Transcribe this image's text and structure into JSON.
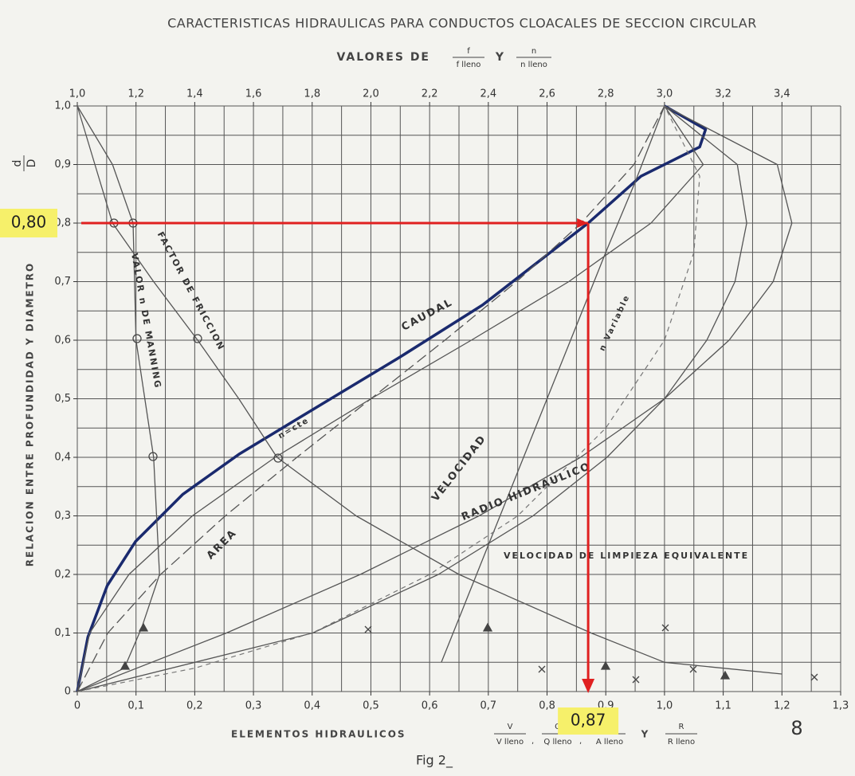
{
  "chart_data": {
    "type": "line",
    "title": "CARACTERISTICAS HIDRAULICAS PARA CONDUCTOS CLOACALES DE SECCION CIRCULAR",
    "subtitle": {
      "text": "VALORES DE",
      "join": "Y",
      "ratios": [
        {
          "num": "f",
          "den": "f lleno"
        },
        {
          "num": "n",
          "den": "n lleno"
        }
      ]
    },
    "y_label": "RELACION ENTRE PROFUNDIDAD Y DIAMETRO",
    "y_ratio": {
      "num": "d",
      "den": "D"
    },
    "x_label": {
      "text": "ELEMENTOS HIDRAULICOS",
      "separator": ",",
      "join": "Y",
      "ratios": [
        {
          "num": "V",
          "den": "V lleno"
        },
        {
          "num": "Q",
          "den": "Q lleno"
        },
        {
          "num": "A",
          "den": "A lleno"
        },
        {
          "num": "R",
          "den": "R lleno"
        }
      ]
    },
    "caption": "Fig 2_",
    "page_number": "8",
    "xlim": [
      0,
      1.3
    ],
    "xticks": [
      0,
      {
        "value": 0.1,
        "label": "0,1"
      },
      {
        "value": 0.2,
        "label": "0,2"
      },
      {
        "value": 0.3,
        "label": "0,3"
      },
      {
        "value": 0.4,
        "label": "0,4"
      },
      {
        "value": 0.5,
        "label": "0,5"
      },
      {
        "value": 0.6,
        "label": "0,6"
      },
      {
        "value": 0.7,
        "label": "0,7"
      },
      {
        "value": 0.8,
        "label": "0,8"
      },
      {
        "value": 0.9,
        "label": "0,9"
      },
      {
        "value": 1.0,
        "label": "1,0"
      },
      {
        "value": 1.1,
        "label": "1,1"
      },
      {
        "value": 1.2,
        "label": "1,2"
      },
      {
        "value": 1.3,
        "label": "1,3"
      }
    ],
    "x2lim": [
      1.0,
      3.6
    ],
    "x2ticks": [
      {
        "value": 1.0,
        "label": "1,0"
      },
      {
        "value": 1.2,
        "label": "1,2"
      },
      {
        "value": 1.4,
        "label": "1,4"
      },
      {
        "value": 1.6,
        "label": "1,6"
      },
      {
        "value": 1.8,
        "label": "1,8"
      },
      {
        "value": 2.0,
        "label": "2,0"
      },
      {
        "value": 2.2,
        "label": "2,2"
      },
      {
        "value": 2.4,
        "label": "2,4"
      },
      {
        "value": 2.6,
        "label": "2,6"
      },
      {
        "value": 2.8,
        "label": "2,8"
      },
      {
        "value": 3.0,
        "label": "3,0"
      },
      {
        "value": 3.2,
        "label": "3,2"
      },
      {
        "value": 3.4,
        "label": "3,4"
      }
    ],
    "ylim": [
      0,
      1
    ],
    "yticks": [
      0,
      {
        "value": 0.1,
        "label": "0,1"
      },
      {
        "value": 0.2,
        "label": "0,2"
      },
      {
        "value": 0.3,
        "label": "0,3"
      },
      {
        "value": 0.4,
        "label": "0,4"
      },
      {
        "value": 0.5,
        "label": "0,5"
      },
      {
        "value": 0.6,
        "label": "0,6"
      },
      {
        "value": 0.7,
        "label": "0,7"
      },
      {
        "value": 0.8,
        "label": "0,8"
      },
      {
        "value": 0.9,
        "label": "0,9"
      },
      {
        "value": 1.0,
        "label": "1,0"
      }
    ],
    "grid": true,
    "xgrid": [
      0,
      0.05,
      0.1,
      0.15,
      0.2,
      0.25,
      0.3,
      0.35,
      0.4,
      0.45,
      0.5,
      0.55,
      0.6,
      0.65,
      0.7,
      0.75,
      0.8,
      0.85,
      0.9,
      0.95,
      1.0,
      1.05,
      1.1,
      1.15,
      1.2,
      1.25,
      1.3
    ],
    "ygrid": [
      0,
      0.05,
      0.1,
      0.15,
      0.2,
      0.25,
      0.3,
      0.35,
      0.4,
      0.45,
      0.5,
      0.55,
      0.6,
      0.65,
      0.7,
      0.75,
      0.8,
      0.85,
      0.9,
      0.95,
      1.0
    ],
    "series": [
      {
        "name": "CAUDAL",
        "color": "#1a2a6e",
        "width": 3.5,
        "x": [
          0,
          0.018,
          0.051,
          0.099,
          0.18,
          0.275,
          0.41,
          0.546,
          0.69,
          0.87,
          0.96,
          1.06,
          1.07,
          1.0
        ],
        "y": [
          0,
          0.093,
          0.181,
          0.256,
          0.337,
          0.405,
          0.487,
          0.569,
          0.66,
          0.8,
          0.88,
          0.93,
          0.96,
          1.0
        ]
      },
      {
        "name": "n=cte",
        "color": "#555555",
        "width": 1.3,
        "x": [
          0,
          0.021,
          0.088,
          0.196,
          0.337,
          0.5,
          0.671,
          0.837,
          0.977,
          1.066,
          1.0
        ],
        "y": [
          0,
          0.1,
          0.2,
          0.3,
          0.4,
          0.5,
          0.6,
          0.7,
          0.8,
          0.9,
          1.0
        ]
      },
      {
        "name": "AREA",
        "color": "#555555",
        "width": 1.3,
        "dash": "14 6",
        "x": [
          0,
          0.052,
          0.142,
          0.252,
          0.374,
          0.5,
          0.626,
          0.748,
          0.858,
          0.948,
          1.0
        ],
        "y": [
          0,
          0.1,
          0.2,
          0.3,
          0.4,
          0.5,
          0.6,
          0.7,
          0.8,
          0.9,
          1.0
        ]
      },
      {
        "name": "VELOCIDAD",
        "color": "#555555",
        "width": 1.3,
        "x": [
          0,
          0.401,
          0.615,
          0.776,
          0.902,
          1.0,
          1.072,
          1.12,
          1.14,
          1.124,
          1.0
        ],
        "y": [
          0,
          0.1,
          0.2,
          0.3,
          0.4,
          0.5,
          0.6,
          0.7,
          0.8,
          0.9,
          1.0
        ]
      },
      {
        "name": "n Variable",
        "color": "#555555",
        "width": 1.3,
        "x": [
          0.62,
          0.66,
          0.7,
          0.74,
          0.78,
          0.82,
          0.86,
          0.9,
          0.95,
          1.0
        ],
        "y": [
          0.05,
          0.15,
          0.25,
          0.35,
          0.45,
          0.55,
          0.65,
          0.75,
          0.87,
          1.0
        ]
      },
      {
        "name": "RADIO HIDRAULICO",
        "color": "#555555",
        "width": 1.3,
        "x": [
          0,
          0.254,
          0.482,
          0.684,
          0.857,
          1.0,
          1.11,
          1.185,
          1.217,
          1.192,
          1.0
        ],
        "y": [
          0,
          0.1,
          0.2,
          0.3,
          0.4,
          0.5,
          0.6,
          0.7,
          0.8,
          0.9,
          1.0
        ]
      },
      {
        "name": "VELOCIDAD DE LIMPIEZA EQUIVALENTE",
        "color": "#777777",
        "width": 1.2,
        "dash": "6 5",
        "x": [
          0,
          0.2,
          0.4,
          0.6,
          0.75,
          0.9,
          1.0,
          1.05,
          1.06,
          1.0
        ],
        "y": [
          0,
          0.04,
          0.1,
          0.2,
          0.3,
          0.45,
          0.6,
          0.75,
          0.88,
          1.0
        ]
      },
      {
        "name": "FACTOR DE FRICCION",
        "color": "#555555",
        "width": 1.3,
        "axis": "x2",
        "x": [
          1.0,
          1.06,
          1.12,
          1.26,
          1.41,
          1.55,
          1.68,
          1.95,
          2.3,
          2.75,
          3.0,
          3.4
        ],
        "y": [
          1.0,
          0.9,
          0.8,
          0.7,
          0.6,
          0.5,
          0.4,
          0.3,
          0.2,
          0.1,
          0.05,
          0.03
        ]
      },
      {
        "name": "VALOR n DE MANNING",
        "color": "#555555",
        "width": 1.3,
        "axis": "x2",
        "x": [
          1.0,
          1.12,
          1.19,
          1.2,
          1.26,
          1.28,
          1.22,
          1.16,
          1.0
        ],
        "y": [
          1.0,
          0.9,
          0.8,
          0.6,
          0.4,
          0.2,
          0.11,
          0.04,
          0
        ]
      }
    ],
    "read_point": {
      "x": 0.87,
      "y": 0.8,
      "x_label": "0,87",
      "y_label": "0,80",
      "color": "#e02020",
      "highlight": "#f6f06a"
    }
  }
}
